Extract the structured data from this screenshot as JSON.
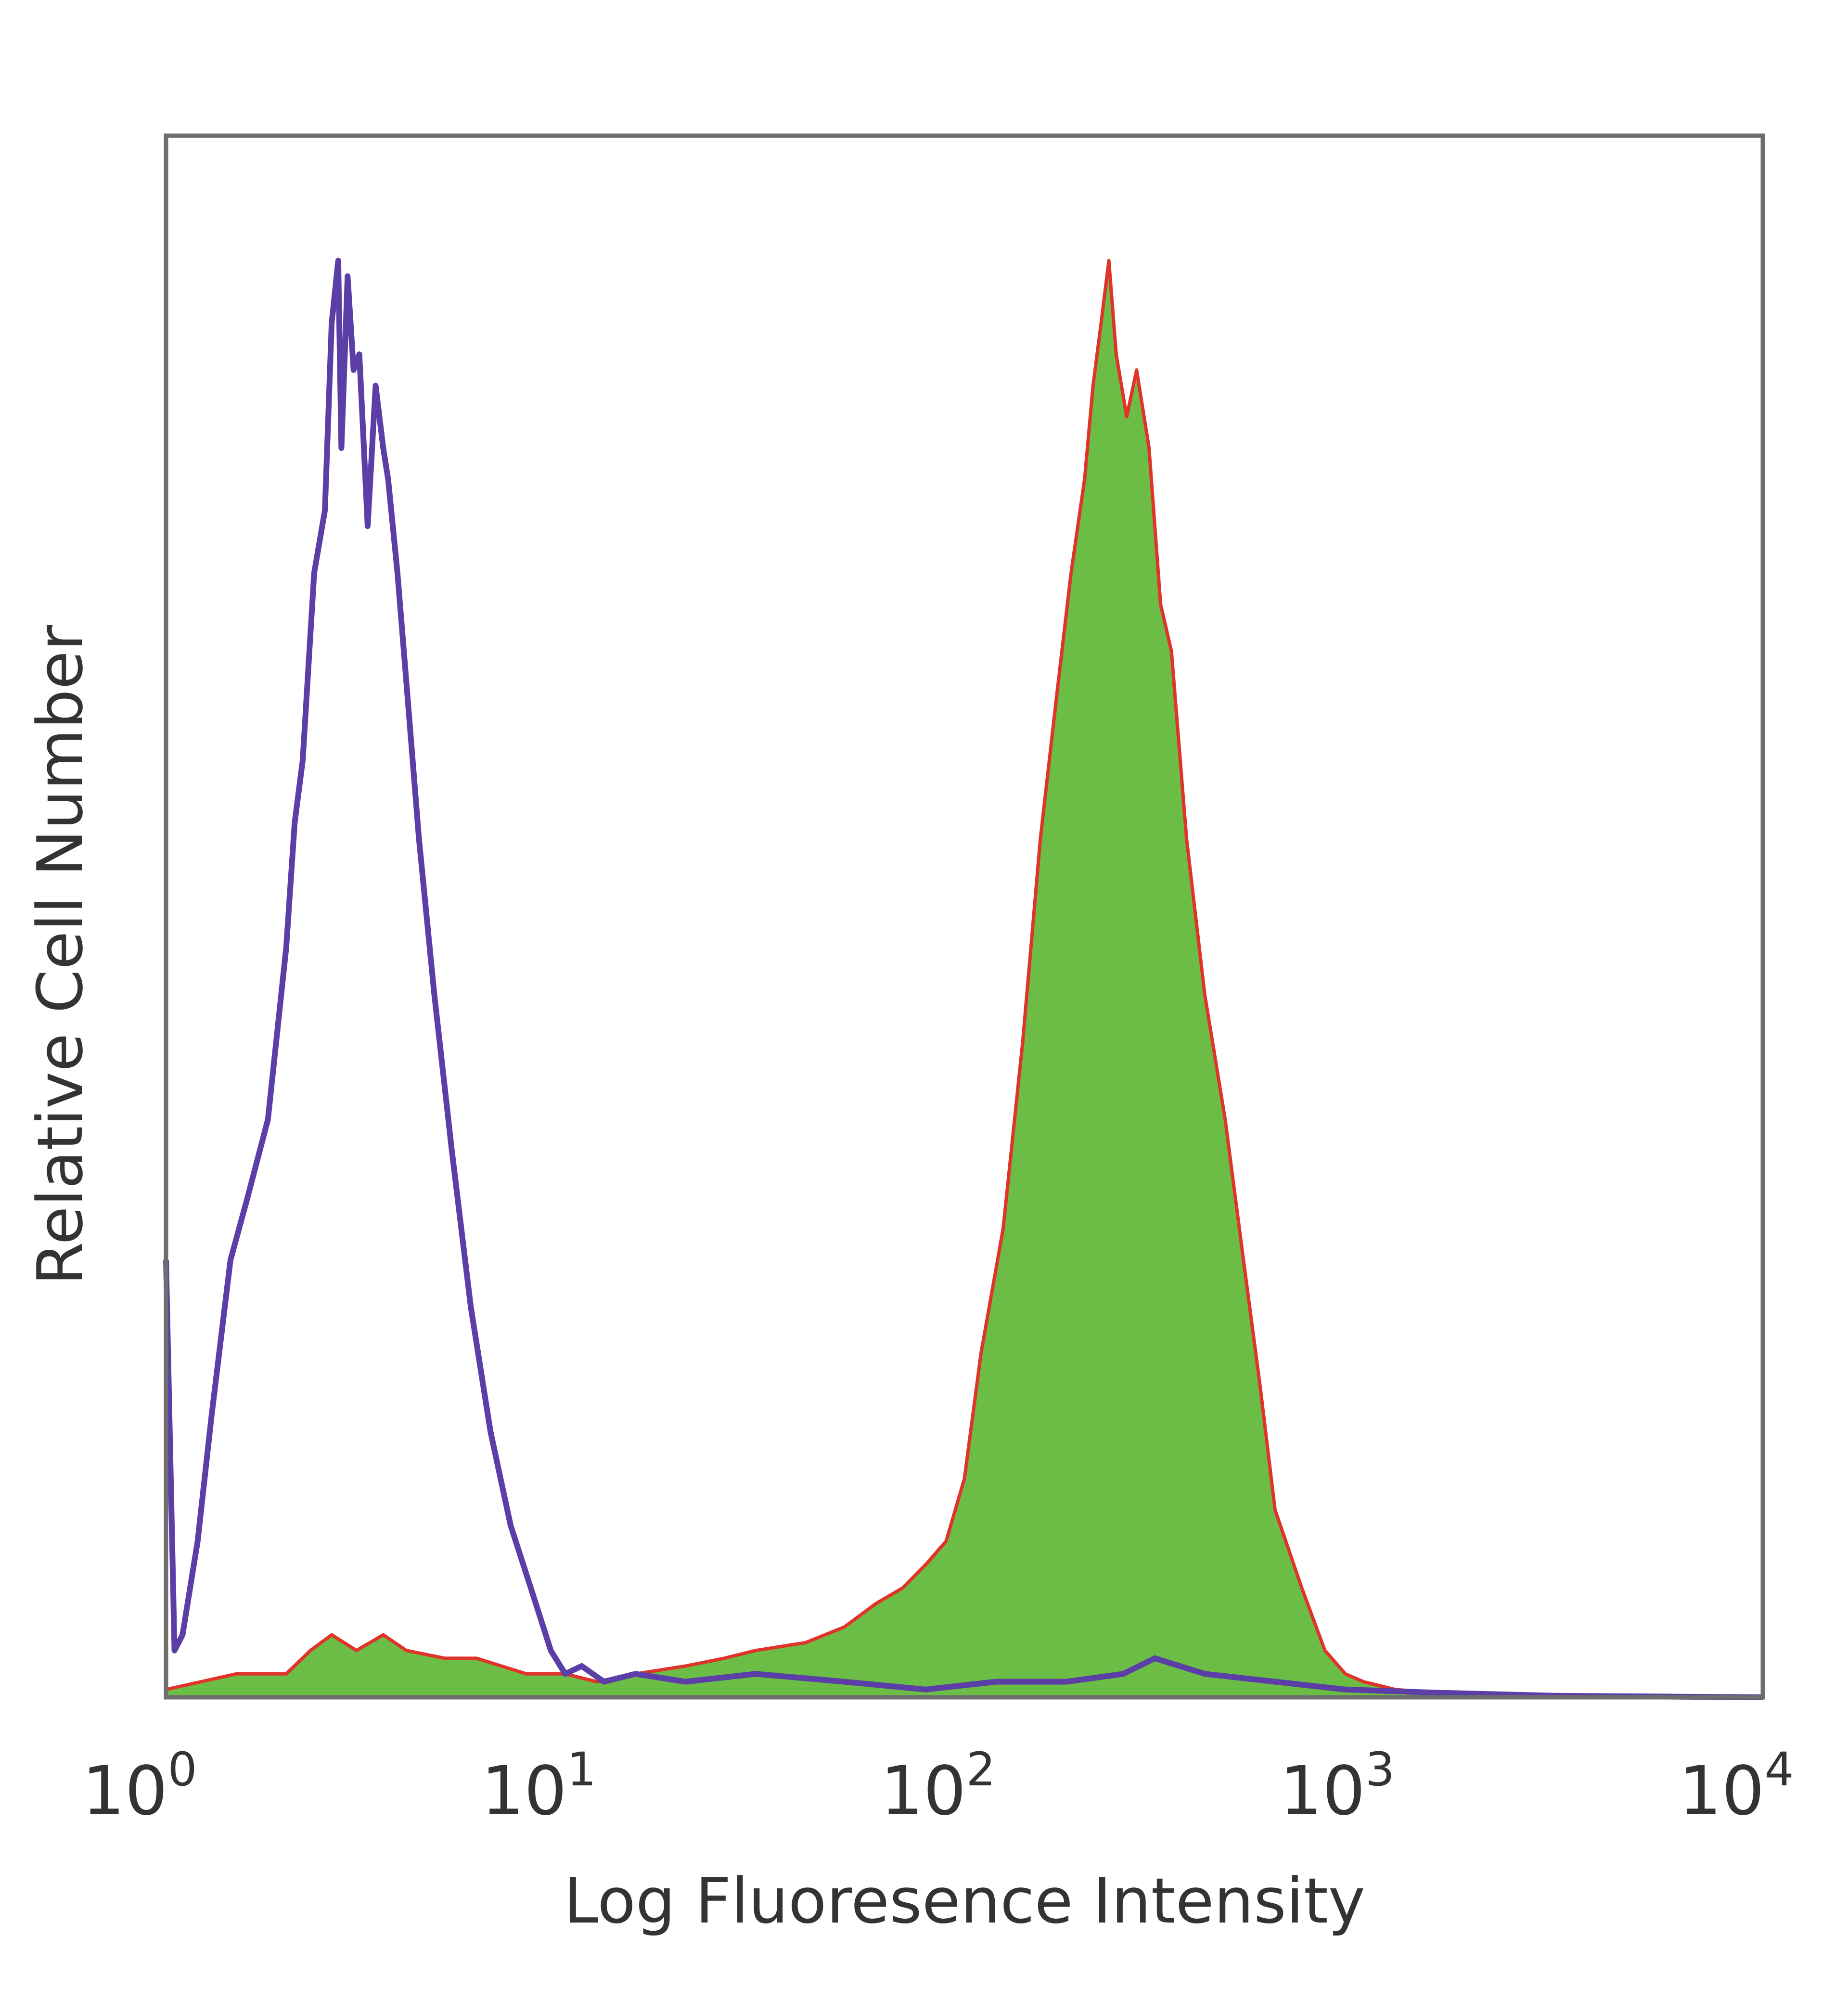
{
  "chart_data": {
    "type": "area",
    "title": "",
    "xlabel": "Log Fluoresence Intensity",
    "ylabel": "Relative Cell Number",
    "xscale": "log",
    "xlim": [
      1,
      10000
    ],
    "ylim": [
      0,
      100
    ],
    "grid": false,
    "legend": "none",
    "x_ticks": [
      {
        "base": "10",
        "exp": "0"
      },
      {
        "base": "10",
        "exp": "1"
      },
      {
        "base": "10",
        "exp": "2"
      },
      {
        "base": "10",
        "exp": "3"
      },
      {
        "base": "10",
        "exp": "4"
      }
    ],
    "colors": {
      "frame": "#6e6e6e",
      "isotype_line": "#5b3ea6",
      "stained_fill": "#6cbd45",
      "stained_edge": "#e0332a"
    },
    "series": [
      {
        "style": "line",
        "color": "#5b3ea6",
        "x": [
          1.0,
          1.05,
          1.1,
          1.2,
          1.3,
          1.45,
          1.6,
          1.8,
          2.0,
          2.1,
          2.2,
          2.35,
          2.5,
          2.6,
          2.7,
          2.75,
          2.85,
          2.95,
          3.05,
          3.2,
          3.35,
          3.5,
          3.6,
          3.8,
          4.0,
          4.3,
          4.7,
          5.2,
          5.8,
          6.5,
          7.3,
          8.2,
          9.2,
          10.0,
          11.0,
          12.5,
          15.0,
          20.0,
          30.0,
          50.0,
          80.0,
          120.0,
          180.0,
          250.0,
          300.0,
          400.0,
          600.0,
          900.0,
          1500.0,
          3000.0,
          10000.0
        ],
        "y": [
          28,
          3,
          4,
          10,
          18,
          28,
          32,
          37,
          48,
          56,
          60,
          72,
          76,
          88,
          92,
          80,
          91,
          85,
          86,
          75,
          84,
          80,
          78,
          72,
          65,
          55,
          45,
          35,
          25,
          17,
          11,
          7,
          3,
          1.5,
          2,
          1,
          1.5,
          1,
          1.5,
          1,
          0.5,
          1,
          1,
          1.5,
          2.5,
          1.5,
          1,
          0.5,
          0.3,
          0.1,
          0
        ]
      },
      {
        "style": "filled-area",
        "color": "#6cbd45",
        "edge_color": "#e0332a",
        "x": [
          1.0,
          1.5,
          2.0,
          2.3,
          2.6,
          3.0,
          3.5,
          4.0,
          5.0,
          6.0,
          8.0,
          10.0,
          12.0,
          15.0,
          20.0,
          25.0,
          30.0,
          40.0,
          50.0,
          60.0,
          70.0,
          80.0,
          90.0,
          100.0,
          110.0,
          125.0,
          140.0,
          155.0,
          170.0,
          185.0,
          200.0,
          210.0,
          220.0,
          230.0,
          240.0,
          255.0,
          270.0,
          290.0,
          310.0,
          330.0,
          360.0,
          400.0,
          450.0,
          500.0,
          550.0,
          600.0,
          700.0,
          800.0,
          900.0,
          1000.0,
          1200.0,
          1500.0,
          2000.0,
          10000.0
        ],
        "y": [
          0.5,
          1.5,
          1.5,
          3,
          4,
          3,
          4,
          3,
          2.5,
          2.5,
          1.5,
          1.5,
          1,
          1.5,
          2,
          2.5,
          3,
          3.5,
          4.5,
          6,
          7,
          8.5,
          10,
          14,
          22,
          30,
          42,
          55,
          64,
          72,
          78,
          84,
          88,
          92,
          86,
          82,
          85,
          80,
          70,
          67,
          55,
          45,
          37,
          28,
          20,
          12,
          7,
          3,
          1.5,
          1,
          0.5,
          0.3,
          0,
          0
        ]
      }
    ]
  }
}
